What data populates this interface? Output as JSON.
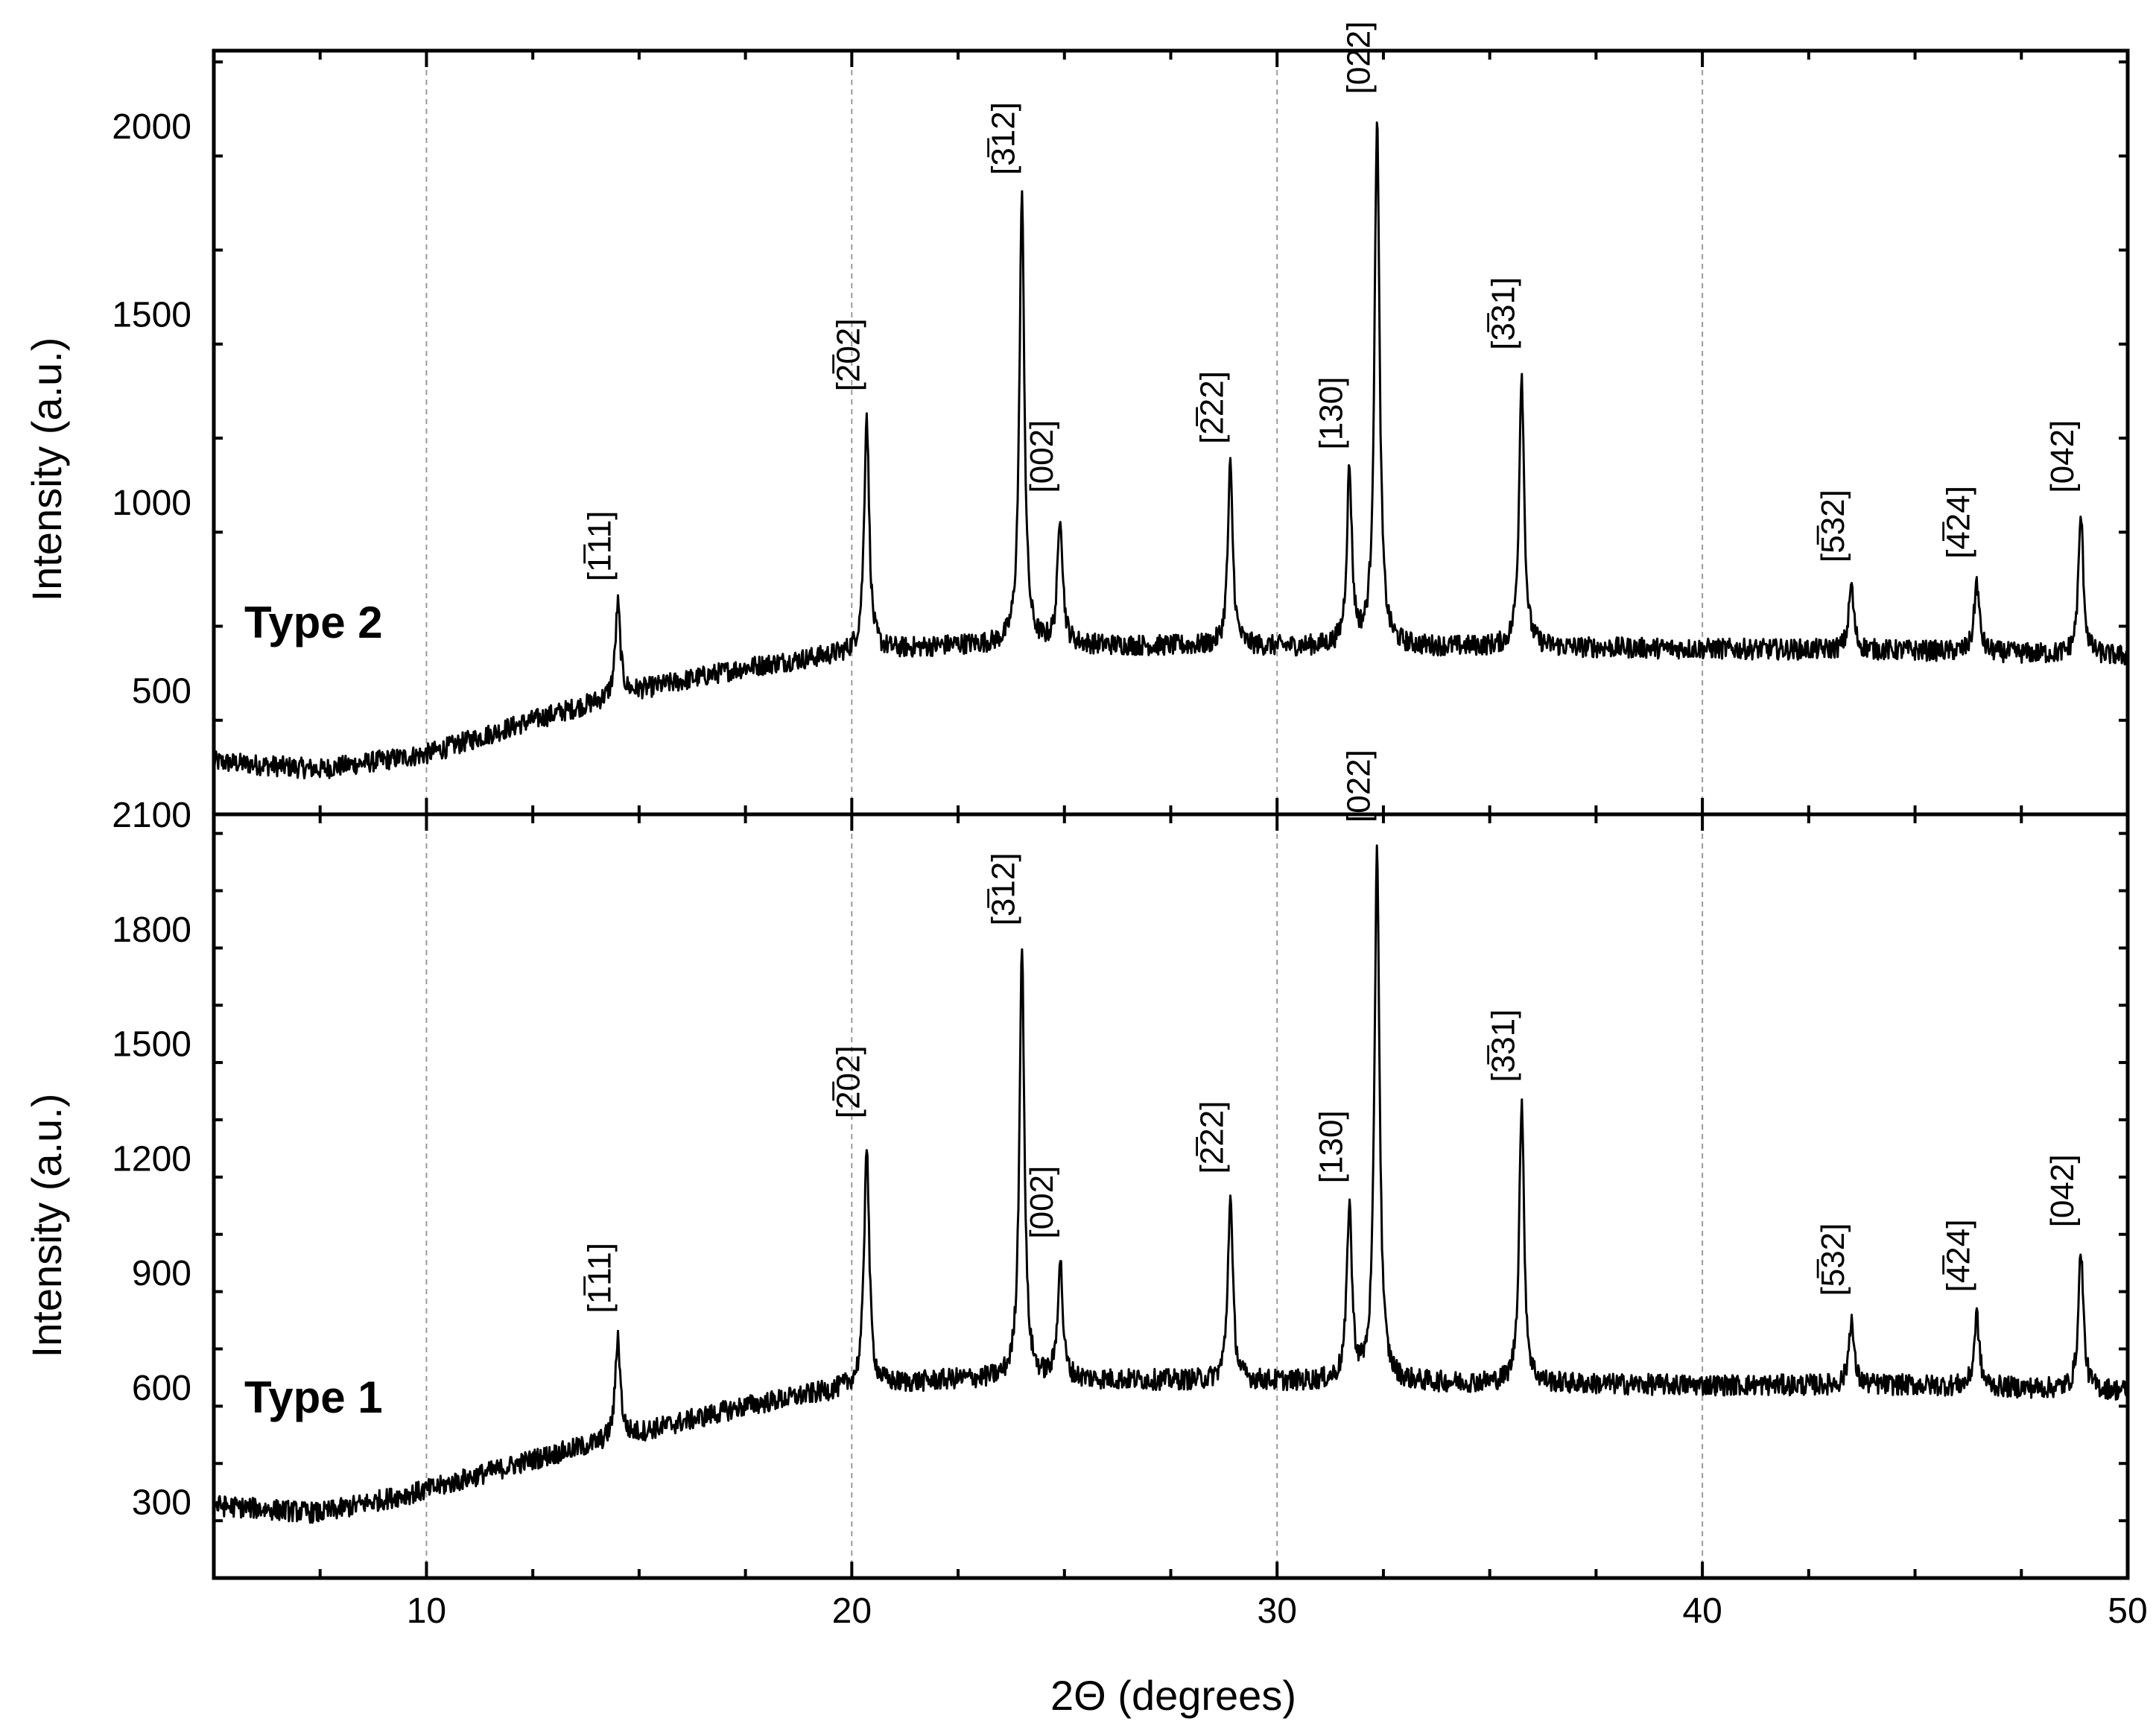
{
  "chart_data": {
    "type": "line",
    "xlabel": "2Θ (degrees)",
    "xlim": [
      5,
      50
    ],
    "x_ticks": [
      "10",
      "20",
      "30",
      "40",
      "50"
    ],
    "x_minor_step": 2.5,
    "grid": "vertical dashed at major x ticks",
    "panels": [
      {
        "id": "type2",
        "tag": "Type 2",
        "ylabel": "Intensity (a.u.)",
        "ylim": [
          170,
          2200
        ],
        "y_ticks": [
          500,
          1000,
          1500,
          2000
        ],
        "y_tick_labels": [
          "500",
          "1000",
          "1500",
          "2000"
        ],
        "y_minor_step": 250,
        "series": [
          {
            "baseline": [
              [
                5,
                310
              ],
              [
                7.5,
                290
              ],
              [
                10,
                330
              ],
              [
                12.5,
                420
              ],
              [
                15,
                500
              ],
              [
                17.5,
                560
              ],
              [
                20,
                600
              ],
              [
                22.5,
                620
              ],
              [
                25,
                620
              ],
              [
                30,
                615
              ],
              [
                35,
                615
              ],
              [
                40,
                610
              ],
              [
                45,
                605
              ],
              [
                50,
                590
              ]
            ],
            "peaks": [
              {
                "hkl": "[1̅11]",
                "x": 14.5,
                "y": 730
              },
              {
                "hkl": "[2̅02]",
                "x": 20.35,
                "y": 1235
              },
              {
                "hkl": "[3̅12]",
                "x": 24.0,
                "y": 1810
              },
              {
                "hkl": "[002]",
                "x": 24.9,
                "y": 965
              },
              {
                "hkl": "[2̅22]",
                "x": 28.9,
                "y": 1095
              },
              {
                "hkl": "[130]",
                "x": 31.7,
                "y": 1080
              },
              {
                "hkl": "[022]",
                "x": 32.35,
                "y": 2025
              },
              {
                "hkl": "[3̅31]",
                "x": 35.75,
                "y": 1345
              },
              {
                "hkl": "[5̅32]",
                "x": 43.5,
                "y": 780
              },
              {
                "hkl": "[4̅24]",
                "x": 46.45,
                "y": 790
              },
              {
                "hkl": "[042]",
                "x": 48.9,
                "y": 965
              }
            ]
          }
        ]
      },
      {
        "id": "type1",
        "tag": "Type 1",
        "ylabel": "Intensity (a.u.)",
        "ylim": [
          100,
          2100
        ],
        "y_ticks": [
          300,
          600,
          900,
          1200,
          1500,
          1800,
          2100
        ],
        "y_tick_labels": [
          "300",
          "600",
          "900",
          "1200",
          "1500",
          "1800",
          "2100"
        ],
        "y_minor_step": 150,
        "series": [
          {
            "baseline": [
              [
                5,
                290
              ],
              [
                7.5,
                270
              ],
              [
                10,
                330
              ],
              [
                12.5,
                410
              ],
              [
                15,
                480
              ],
              [
                17.5,
                550
              ],
              [
                20,
                600
              ],
              [
                22.5,
                620
              ],
              [
                25,
                620
              ],
              [
                30,
                615
              ],
              [
                35,
                610
              ],
              [
                40,
                605
              ],
              [
                45,
                605
              ],
              [
                50,
                590
              ]
            ],
            "peaks": [
              {
                "hkl": "[1̅11]",
                "x": 14.5,
                "y": 735
              },
              {
                "hkl": "[2̅02]",
                "x": 20.35,
                "y": 1245
              },
              {
                "hkl": "[3̅12]",
                "x": 24.0,
                "y": 1750
              },
              {
                "hkl": "[002]",
                "x": 24.9,
                "y": 930
              },
              {
                "hkl": "[2̅22]",
                "x": 28.9,
                "y": 1100
              },
              {
                "hkl": "[130]",
                "x": 31.7,
                "y": 1075
              },
              {
                "hkl": "[022]",
                "x": 32.35,
                "y": 2020
              },
              {
                "hkl": "[3̅31]",
                "x": 35.75,
                "y": 1340
              },
              {
                "hkl": "[5̅32]",
                "x": 43.5,
                "y": 780
              },
              {
                "hkl": "[4̅24]",
                "x": 46.45,
                "y": 790
              },
              {
                "hkl": "[042]",
                "x": 48.9,
                "y": 960
              }
            ]
          }
        ]
      }
    ]
  }
}
